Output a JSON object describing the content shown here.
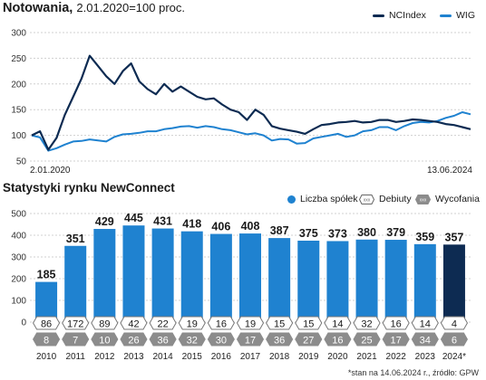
{
  "title_main": "Notowania,",
  "title_sub": "2.01.2020=100 proc.",
  "title2": "Statystyki  rynku NewConnect",
  "footnote": "*stan na 14.06.2024 r., źródło: GPW",
  "colors": {
    "nc": "#0d2b52",
    "wig": "#1f82d0",
    "bar": "#1f82d0",
    "bar_last": "#0d2b52",
    "hex": "#8c8c8c"
  },
  "chart_data": [
    {
      "type": "line",
      "title": "Notowania,",
      "subtitle": "2.01.2020=100 proc.",
      "x_start_label": "2.01.2020",
      "x_end_label": "13.06.2024",
      "ylim": [
        50,
        300
      ],
      "yticks": [
        50,
        100,
        150,
        200,
        250,
        300
      ],
      "grid": true,
      "legend_position": "top-right",
      "x": [
        "2020-01",
        "2020-02",
        "2020-03",
        "2020-04",
        "2020-05",
        "2020-06",
        "2020-07",
        "2020-08",
        "2020-09",
        "2020-10",
        "2020-11",
        "2020-12",
        "2021-01",
        "2021-02",
        "2021-03",
        "2021-04",
        "2021-05",
        "2021-06",
        "2021-07",
        "2021-08",
        "2021-09",
        "2021-10",
        "2021-11",
        "2021-12",
        "2022-01",
        "2022-02",
        "2022-03",
        "2022-04",
        "2022-05",
        "2022-06",
        "2022-07",
        "2022-08",
        "2022-09",
        "2022-10",
        "2022-11",
        "2022-12",
        "2023-01",
        "2023-02",
        "2023-03",
        "2023-04",
        "2023-05",
        "2023-06",
        "2023-07",
        "2023-08",
        "2023-09",
        "2023-10",
        "2023-11",
        "2023-12",
        "2024-01",
        "2024-02",
        "2024-03",
        "2024-04",
        "2024-05",
        "2024-06"
      ],
      "series": [
        {
          "name": "NCIndex",
          "values": [
            100,
            108,
            72,
            95,
            140,
            175,
            210,
            255,
            235,
            215,
            200,
            225,
            240,
            205,
            190,
            180,
            200,
            185,
            195,
            185,
            175,
            170,
            172,
            160,
            150,
            145,
            130,
            150,
            140,
            118,
            113,
            110,
            107,
            103,
            112,
            120,
            122,
            125,
            126,
            128,
            125,
            126,
            130,
            130,
            126,
            128,
            131,
            130,
            128,
            126,
            122,
            120,
            116,
            112
          ]
        },
        {
          "name": "WIG",
          "values": [
            100,
            96,
            70,
            75,
            82,
            88,
            89,
            92,
            90,
            88,
            97,
            102,
            103,
            105,
            108,
            108,
            112,
            114,
            117,
            118,
            115,
            118,
            116,
            112,
            110,
            106,
            102,
            104,
            100,
            90,
            93,
            92,
            84,
            85,
            94,
            97,
            100,
            103,
            97,
            100,
            108,
            110,
            116,
            116,
            110,
            118,
            124,
            126,
            125,
            128,
            134,
            138,
            145,
            141
          ]
        }
      ]
    },
    {
      "type": "bar",
      "title": "Statystyki  rynku NewConnect",
      "ylim": [
        0,
        500
      ],
      "yticks": [
        0,
        100,
        200,
        300,
        400,
        500
      ],
      "grid": true,
      "legend_position": "top-right",
      "categories": [
        "2010",
        "2011",
        "2012",
        "2013",
        "2014",
        "2015",
        "2016",
        "2017",
        "2018",
        "2019",
        "2020",
        "2021",
        "2022",
        "2023",
        "2024*"
      ],
      "series": [
        {
          "name": "Liczba spółek",
          "values": [
            185,
            351,
            429,
            445,
            431,
            418,
            406,
            408,
            387,
            375,
            373,
            380,
            379,
            359,
            357
          ]
        },
        {
          "name": "Debiuty",
          "values": [
            86,
            172,
            89,
            42,
            22,
            19,
            16,
            19,
            15,
            15,
            14,
            32,
            16,
            14,
            4
          ]
        },
        {
          "name": "Wycofania",
          "values": [
            8,
            7,
            10,
            26,
            36,
            32,
            30,
            17,
            36,
            27,
            16,
            25,
            17,
            34,
            6
          ]
        }
      ]
    }
  ]
}
